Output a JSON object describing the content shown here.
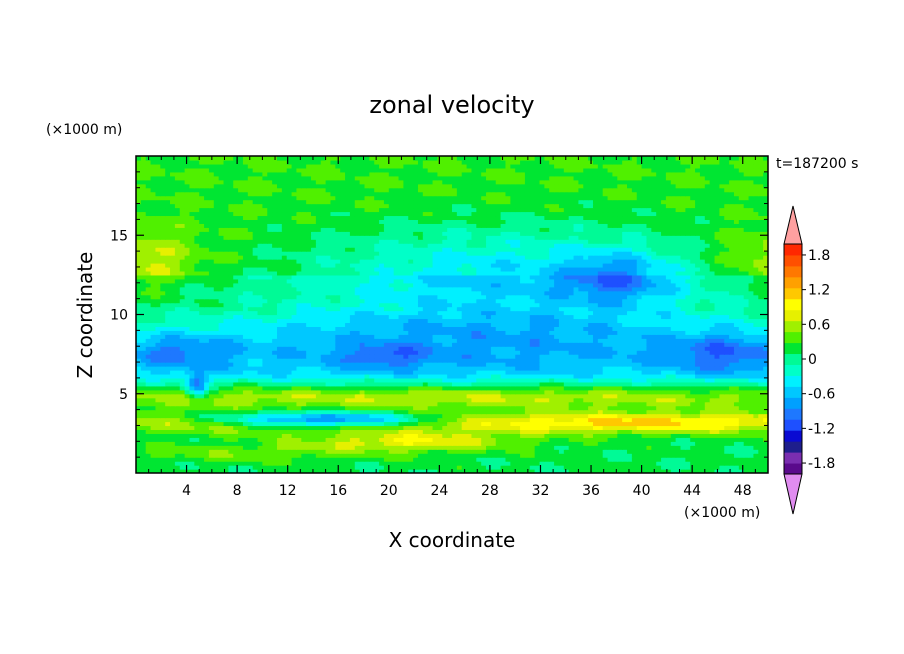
{
  "chart_data": {
    "type": "heatmap",
    "title": "zonal velocity",
    "xlabel": "X coordinate",
    "ylabel": "Z coordinate",
    "x_unit": "(×1000 m)",
    "y_unit": "(×1000 m)",
    "time_label": "t=187200 s",
    "xlim": [
      0,
      50
    ],
    "ylim": [
      0,
      20
    ],
    "x_ticks": [
      "4",
      "8",
      "12",
      "16",
      "20",
      "24",
      "28",
      "32",
      "36",
      "40",
      "44",
      "48"
    ],
    "y_ticks": [
      "5",
      "10",
      "15"
    ],
    "colorbar": {
      "tick_labels": [
        "1.8",
        "1.2",
        "0.6",
        "0",
        "-0.6",
        "-1.2",
        "-1.8"
      ],
      "min": -2.0,
      "max": 2.0,
      "step": 0.2,
      "colors": [
        "#e08cf0",
        "#5a0a8c",
        "#7a2eb0",
        "#1e1e8c",
        "#0a0ad2",
        "#1e50ff",
        "#1e78ff",
        "#00a0ff",
        "#00c8ff",
        "#00f0ff",
        "#00ffc8",
        "#00fa96",
        "#00e632",
        "#50f000",
        "#a0f000",
        "#e6f000",
        "#ffff00",
        "#ffc800",
        "#ffa000",
        "#ff7800",
        "#ff5000",
        "#ff2800",
        "#ffa0a0"
      ]
    },
    "grid": false
  }
}
